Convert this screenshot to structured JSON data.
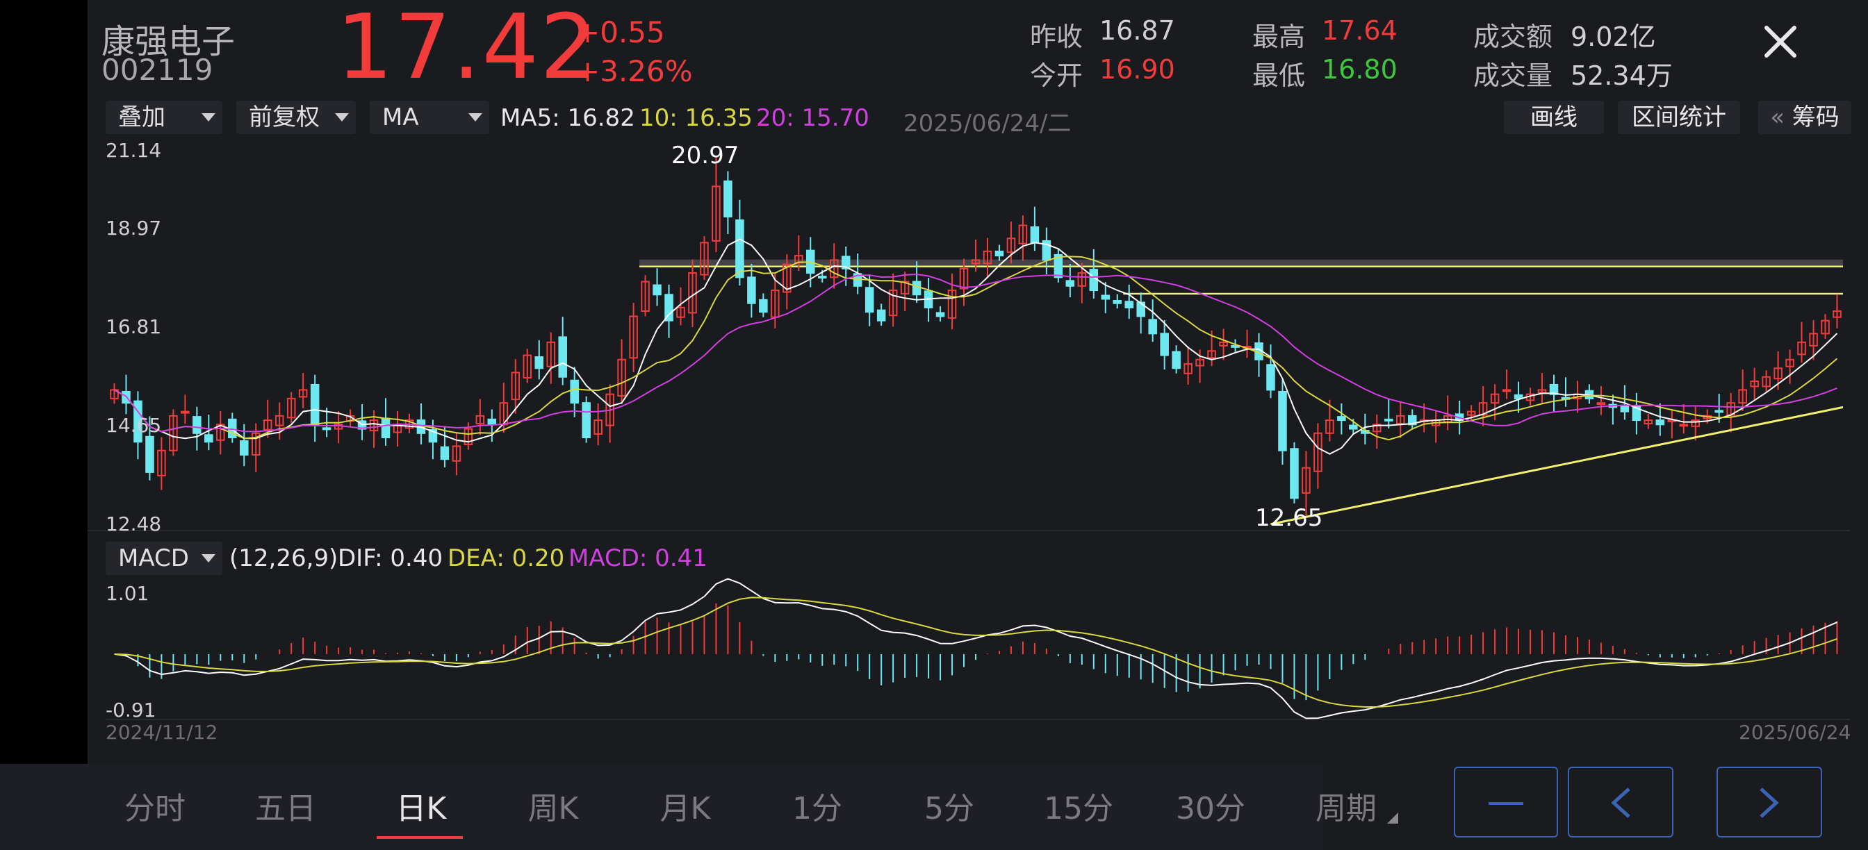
{
  "stock": {
    "name": "康强电子",
    "code": "002119",
    "price": "17.42",
    "change": "+0.55",
    "change_pct": "+3.26%"
  },
  "stats": {
    "prev_close_label": "昨收",
    "prev_close": "16.87",
    "open_label": "今开",
    "open": "16.90",
    "high_label": "最高",
    "high": "17.64",
    "low_label": "最低",
    "low": "16.80",
    "amount_label": "成交额",
    "amount": "9.02亿",
    "volume_label": "成交量",
    "volume": "52.34万"
  },
  "close_icon": "close-icon",
  "toolbar": {
    "overlay": "叠加",
    "adjust": "前复权",
    "indicator": "MA",
    "ma5": "MA5: 16.82",
    "ma10": "10: 16.35",
    "ma20": "20: 15.70",
    "date": "2025/06/24/二",
    "draw": "画线",
    "range_stats": "区间统计",
    "chip_arrow": "«",
    "chips": "筹码"
  },
  "kchart": {
    "y_ticks": [
      "21.14",
      "18.97",
      "16.81",
      "14.65",
      "12.48"
    ],
    "high_label": "20.97",
    "low_label": "12.65"
  },
  "macd": {
    "indicator": "MACD",
    "params": "(12,26,9)",
    "dif": "DIF: 0.40",
    "dea": "DEA: 0.20",
    "macd": "MACD: 0.41",
    "y_max": "1.01",
    "y_min": "-0.91",
    "start_date": "2024/11/12",
    "end_date": "2025/06/24"
  },
  "tabs": [
    "分时",
    "五日",
    "日K",
    "周K",
    "月K",
    "1分",
    "5分",
    "15分",
    "30分",
    "周期"
  ],
  "active_tab": 2,
  "nav": {
    "zoom_out_icon": "minus-icon",
    "prev_icon": "chevron-left-icon",
    "next_icon": "chevron-right-icon"
  },
  "colors": {
    "up": "#f23c3c",
    "down": "#6ee8f0",
    "ma5": "#ffffff",
    "ma10": "#d8d840",
    "ma20": "#d040e0",
    "trendline": "#f0f070",
    "accent": "#3c64b4"
  },
  "chart_data": {
    "type": "candlestick",
    "x_range": [
      "2024/11/12",
      "2025/06/24"
    ],
    "ylim": [
      12.48,
      21.14
    ],
    "y_ticks": [
      21.14,
      18.97,
      16.81,
      14.65,
      12.48
    ],
    "max_point": 20.97,
    "min_point": 12.65,
    "last": {
      "open": 16.9,
      "high": 17.64,
      "low": 16.8,
      "close": 17.42
    },
    "ma": {
      "MA5": 16.82,
      "MA10": 16.35,
      "MA20": 15.7
    },
    "close_series": [
      15.6,
      15.3,
      14.4,
      13.7,
      14.2,
      15.0,
      15.1,
      14.6,
      14.4,
      14.8,
      14.5,
      14.1,
      14.6,
      14.9,
      15.0,
      15.4,
      15.6,
      14.8,
      14.7,
      14.8,
      15.0,
      14.7,
      14.9,
      14.5,
      14.8,
      14.9,
      14.6,
      14.4,
      14.0,
      14.3,
      14.7,
      15.0,
      14.8,
      15.3,
      16.0,
      16.4,
      16.1,
      16.7,
      15.9,
      15.3,
      14.5,
      14.9,
      15.5,
      16.3,
      17.3,
      18.1,
      17.8,
      17.2,
      17.5,
      18.3,
      19.0,
      20.3,
      19.6,
      18.2,
      17.6,
      17.4,
      17.9,
      18.5,
      18.7,
      18.3,
      18.2,
      18.6,
      18.4,
      18.0,
      17.4,
      17.2,
      17.9,
      18.1,
      17.8,
      17.5,
      17.3,
      17.9,
      18.4,
      18.6,
      18.8,
      18.7,
      19.1,
      19.4,
      19.0,
      18.6,
      18.2,
      18.0,
      18.3,
      17.9,
      17.7,
      17.6,
      17.5,
      17.3,
      16.9,
      16.4,
      16.1,
      16.2,
      16.3,
      16.5,
      16.7,
      16.6,
      16.6,
      16.3,
      15.6,
      14.2,
      13.1,
      13.8,
      14.6,
      14.9,
      14.9,
      14.7,
      14.6,
      14.8,
      14.9,
      15.0,
      14.8,
      14.9,
      14.9,
      15.0,
      14.9,
      15.1,
      15.3,
      15.5,
      15.6,
      15.4,
      15.5,
      15.6,
      15.5,
      15.4,
      15.5,
      15.4,
      15.3,
      15.2,
      15.1,
      14.9,
      14.9,
      14.8,
      14.9,
      14.8,
      14.9,
      15.0,
      15.1,
      15.3,
      15.6,
      15.8,
      15.9,
      16.1,
      16.3,
      16.7,
      16.9,
      17.2,
      17.42
    ],
    "macd": {
      "dif_last": 0.4,
      "dea_last": 0.2,
      "macd_last": 0.41,
      "ylim": [
        -0.91,
        1.01
      ]
    }
  }
}
